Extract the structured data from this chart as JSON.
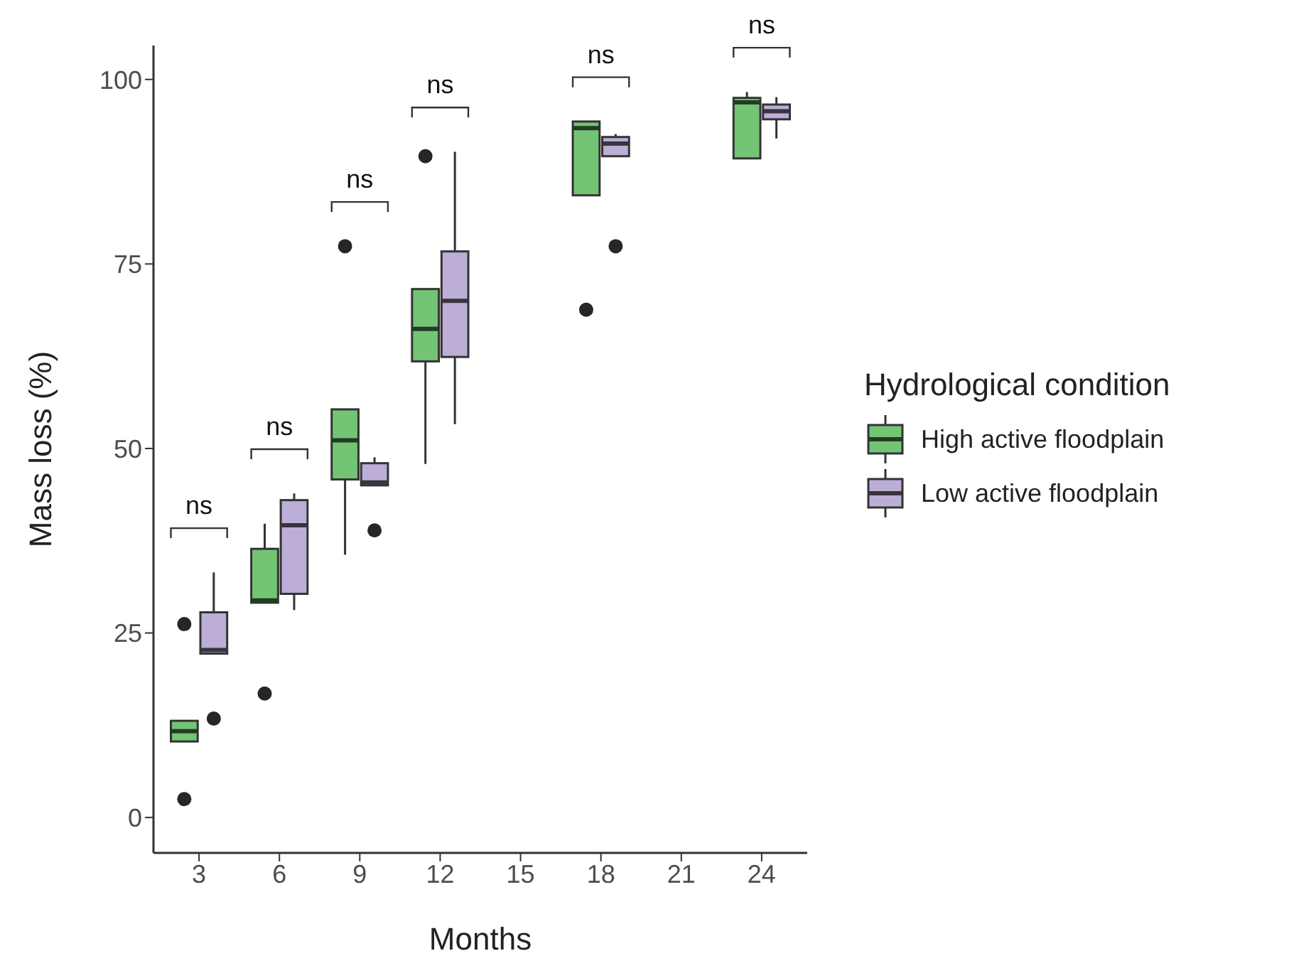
{
  "chart_data": {
    "type": "box",
    "xlabel": "Months",
    "ylabel": "Mass loss (%)",
    "legend_title": "Hydrological condition",
    "legend": "right",
    "grid": false,
    "x": [
      3,
      6,
      9,
      12,
      18,
      24
    ],
    "xlim": [
      1.3,
      25.7
    ],
    "xticks": [
      3,
      6,
      9,
      12,
      15,
      18,
      21,
      24
    ],
    "ylim": [
      -4.8,
      104.6
    ],
    "yticks": [
      0,
      25,
      50,
      75,
      100
    ],
    "series": [
      {
        "name": "High active floodplain",
        "color": "#74c476",
        "boxes": [
          {
            "low": 10.3,
            "q1": 10.3,
            "median": 11.7,
            "q3": 13.1,
            "high": 13.1,
            "outliers": [
              26.2,
              2.5
            ]
          },
          {
            "low": 29.1,
            "q1": 29.1,
            "median": 29.4,
            "q3": 36.4,
            "high": 39.8,
            "outliers": [
              16.8
            ]
          },
          {
            "low": 35.6,
            "q1": 45.8,
            "median": 51.1,
            "q3": 55.3,
            "high": 55.3,
            "outliers": [
              77.4
            ]
          },
          {
            "low": 47.9,
            "q1": 61.8,
            "median": 66.2,
            "q3": 71.6,
            "high": 71.6,
            "outliers": [
              89.6
            ]
          },
          {
            "low": 84.3,
            "q1": 84.3,
            "median": 93.4,
            "q3": 94.3,
            "high": 94.3,
            "outliers": [
              68.8
            ]
          },
          {
            "low": 89.3,
            "q1": 89.3,
            "median": 96.9,
            "q3": 97.5,
            "high": 98.3
          }
        ]
      },
      {
        "name": "Low active floodplain",
        "color": "#bcaed6",
        "boxes": [
          {
            "low": 22.2,
            "q1": 22.2,
            "median": 22.7,
            "q3": 27.8,
            "high": 33.2,
            "outliers": [
              13.4
            ]
          },
          {
            "low": 28.1,
            "q1": 30.3,
            "median": 39.6,
            "q3": 43.0,
            "high": 43.9
          },
          {
            "low": 45.0,
            "q1": 45.0,
            "median": 45.4,
            "q3": 48.0,
            "high": 48.8,
            "outliers": [
              38.9
            ]
          },
          {
            "low": 53.3,
            "q1": 62.4,
            "median": 70.0,
            "q3": 76.7,
            "high": 90.2
          },
          {
            "low": 89.6,
            "q1": 89.6,
            "median": 91.3,
            "q3": 92.2,
            "high": 92.6,
            "outliers": [
              77.4
            ]
          },
          {
            "low": 92.0,
            "q1": 94.6,
            "median": 95.7,
            "q3": 96.6,
            "high": 97.6
          }
        ]
      }
    ],
    "annotations": [
      "ns",
      "ns",
      "ns",
      "ns",
      "ns",
      "ns"
    ]
  }
}
